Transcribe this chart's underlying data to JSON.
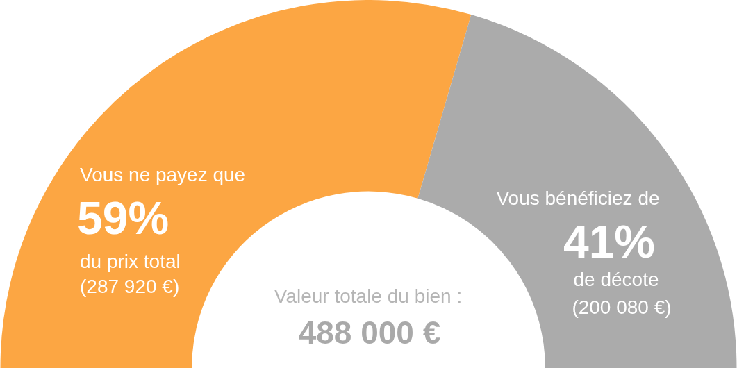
{
  "chart_data": {
    "type": "donut",
    "categories": [
      "Vous ne payez que",
      "Vous bénéficiez de"
    ],
    "values": [
      59,
      41
    ],
    "value_labels": [
      "59%",
      "41%"
    ],
    "colors": [
      "#fca643",
      "#ababab"
    ],
    "annotations": [
      "du prix total",
      "(287 920 €)",
      "de décote",
      "(200 080 €)",
      "Valeur totale du bien :",
      "488 000 €"
    ],
    "legend": false
  }
}
